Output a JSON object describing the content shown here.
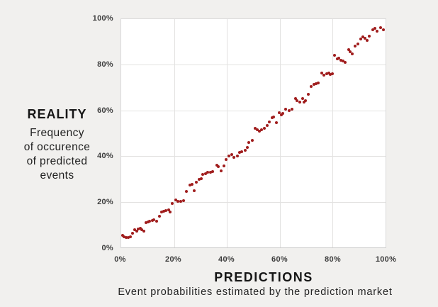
{
  "figure": {
    "background_color": "#f1f0ee",
    "plot_background_color": "#ffffff",
    "gridline_color": "#e3e2e1"
  },
  "y_axis": {
    "title": "REALITY",
    "subtitle_lines": [
      "Frequency",
      "of occurence",
      "of predicted",
      "events"
    ],
    "tick_labels": [
      "100%",
      "80%",
      "60%",
      "40%",
      "20%",
      "0%"
    ]
  },
  "x_axis": {
    "title": "PREDICTIONS",
    "subtitle": "Event probabilities estimated by the prediction market",
    "tick_labels": [
      "0%",
      "20%",
      "40%",
      "60%",
      "80%",
      "100%"
    ]
  },
  "chart_data": {
    "type": "scatter",
    "title": "",
    "xlabel": "PREDICTIONS (Event probabilities estimated by the prediction market)",
    "ylabel": "REALITY (Frequency of occurence of predicted events)",
    "xlim": [
      0,
      100
    ],
    "ylim": [
      0,
      100
    ],
    "x_ticks": [
      0,
      20,
      40,
      60,
      80,
      100
    ],
    "y_ticks": [
      0,
      20,
      40,
      60,
      80,
      100
    ],
    "grid": true,
    "legend": false,
    "point_color": "#a01d1d",
    "points": [
      [
        0.5,
        5.3
      ],
      [
        1.2,
        4.8
      ],
      [
        1.9,
        4.5
      ],
      [
        2.8,
        4.3
      ],
      [
        3.5,
        4.8
      ],
      [
        4.4,
        6.2
      ],
      [
        5.0,
        7.9
      ],
      [
        5.9,
        7.2
      ],
      [
        6.5,
        8.2
      ],
      [
        7.2,
        8.4
      ],
      [
        7.9,
        7.9
      ],
      [
        8.6,
        7.0
      ],
      [
        9.4,
        10.8
      ],
      [
        10.2,
        11.3
      ],
      [
        10.8,
        11.6
      ],
      [
        11.7,
        11.8
      ],
      [
        12.4,
        12.0
      ],
      [
        13.3,
        11.5
      ],
      [
        14.4,
        13.8
      ],
      [
        15.2,
        15.4
      ],
      [
        16.1,
        15.9
      ],
      [
        17.0,
        16.2
      ],
      [
        17.9,
        16.4
      ],
      [
        18.6,
        15.6
      ],
      [
        19.3,
        19.1
      ],
      [
        20.7,
        20.7
      ],
      [
        21.4,
        20.2
      ],
      [
        22.6,
        20.1
      ],
      [
        23.5,
        20.4
      ],
      [
        24.7,
        24.6
      ],
      [
        25.9,
        27.2
      ],
      [
        26.9,
        27.7
      ],
      [
        27.6,
        24.9
      ],
      [
        28.3,
        28.5
      ],
      [
        29.6,
        29.7
      ],
      [
        30.3,
        30.2
      ],
      [
        30.9,
        32.0
      ],
      [
        31.8,
        32.3
      ],
      [
        32.7,
        32.8
      ],
      [
        33.8,
        33.0
      ],
      [
        34.7,
        33.3
      ],
      [
        36.1,
        36.1
      ],
      [
        36.7,
        35.4
      ],
      [
        37.9,
        33.6
      ],
      [
        38.8,
        35.7
      ],
      [
        39.7,
        38.5
      ],
      [
        40.7,
        40.0
      ],
      [
        41.8,
        40.8
      ],
      [
        42.7,
        39.5
      ],
      [
        43.9,
        40.2
      ],
      [
        44.7,
        41.5
      ],
      [
        45.6,
        41.8
      ],
      [
        46.8,
        42.6
      ],
      [
        47.7,
        43.9
      ],
      [
        48.3,
        45.9
      ],
      [
        49.5,
        47.0
      ],
      [
        50.7,
        52.1
      ],
      [
        51.4,
        51.5
      ],
      [
        52.3,
        50.8
      ],
      [
        53.0,
        51.5
      ],
      [
        54.1,
        52.3
      ],
      [
        55.2,
        53.3
      ],
      [
        56.1,
        55.1
      ],
      [
        57.0,
        56.9
      ],
      [
        57.7,
        57.1
      ],
      [
        58.8,
        54.6
      ],
      [
        59.9,
        59.0
      ],
      [
        60.5,
        58.2
      ],
      [
        61.2,
        58.7
      ],
      [
        62.3,
        60.7
      ],
      [
        63.5,
        60.0
      ],
      [
        64.6,
        60.7
      ],
      [
        66.0,
        65.1
      ],
      [
        66.6,
        64.4
      ],
      [
        67.5,
        63.8
      ],
      [
        68.5,
        65.1
      ],
      [
        69.1,
        63.6
      ],
      [
        69.7,
        64.4
      ],
      [
        70.9,
        67.2
      ],
      [
        71.9,
        70.5
      ],
      [
        72.8,
        71.5
      ],
      [
        73.7,
        71.8
      ],
      [
        74.4,
        72.1
      ],
      [
        75.9,
        76.4
      ],
      [
        76.8,
        75.6
      ],
      [
        77.7,
        76.1
      ],
      [
        78.6,
        76.4
      ],
      [
        79.2,
        75.9
      ],
      [
        79.9,
        76.1
      ],
      [
        80.8,
        84.1
      ],
      [
        81.7,
        82.6
      ],
      [
        82.4,
        82.8
      ],
      [
        83.1,
        82.1
      ],
      [
        83.8,
        81.7
      ],
      [
        84.6,
        81.2
      ],
      [
        86.0,
        86.5
      ],
      [
        86.6,
        85.8
      ],
      [
        87.5,
        84.8
      ],
      [
        88.4,
        88.2
      ],
      [
        89.6,
        89.0
      ],
      [
        90.6,
        91.3
      ],
      [
        91.5,
        92.1
      ],
      [
        92.2,
        91.5
      ],
      [
        93.1,
        90.8
      ],
      [
        93.8,
        92.5
      ],
      [
        95.3,
        95.2
      ],
      [
        96.0,
        95.9
      ],
      [
        96.9,
        94.6
      ],
      [
        98.2,
        96.2
      ],
      [
        99.1,
        95.4
      ]
    ]
  }
}
